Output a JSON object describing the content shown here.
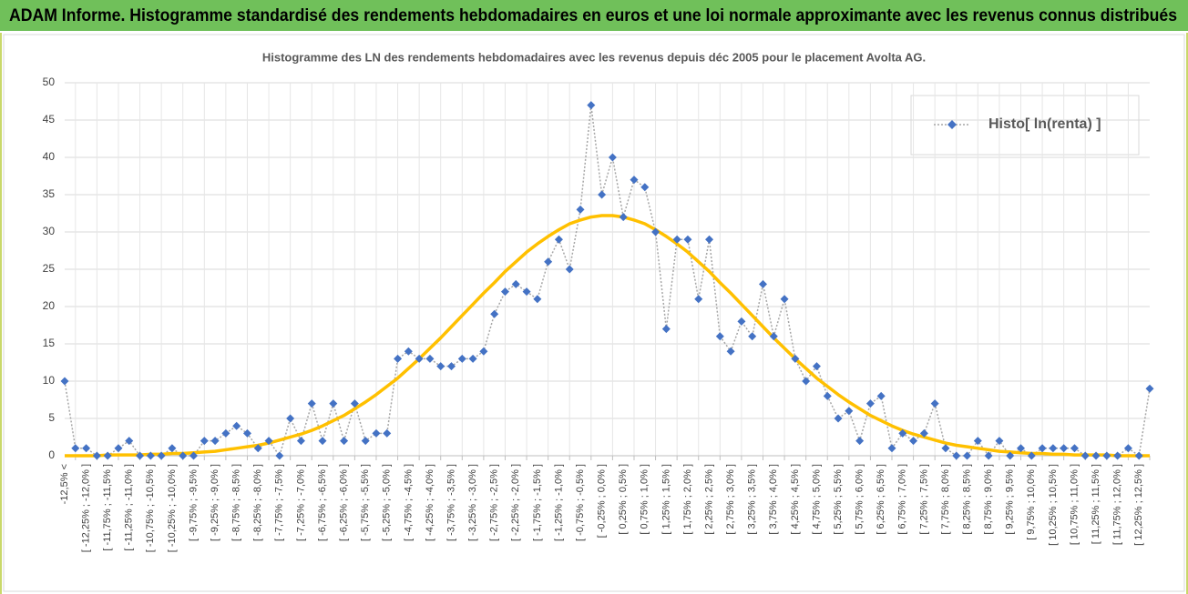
{
  "header": {
    "title": "ADAM Informe. Histogramme standardisé des rendements hebdomadaires en euros et une loi normale approximante avec les revenus connus distribués"
  },
  "chart_data": {
    "type": "line",
    "title": "Histogramme  des LN des rendements hebdomadaires avec les revenus depuis déc 2005 pour le placement Avolta AG.",
    "categories": [
      "-12,5% <",
      null,
      "[ -12,25% ; -12,0% ]",
      null,
      "[ -11,75% ; -11,5% ]",
      null,
      "[ -11,25% ; -11,0% ]",
      null,
      "[ -10,75% ; -10,5% ]",
      null,
      "[ -10,25% ; -10,0% ]",
      null,
      "[ -9,75% ; -9,5% ]",
      null,
      "[ -9,25% ; -9,0% ]",
      null,
      "[ -8,75% ; -8,5% ]",
      null,
      "[ -8,25% ; -8,0% ]",
      null,
      "[ -7,75% ; -7,5% ]",
      null,
      "[ -7,25% ; -7,0% ]",
      null,
      "[ -6,75% ; -6,5% ]",
      null,
      "[ -6,25% ; -6,0% ]",
      null,
      "[ -5,75% ; -5,5% ]",
      null,
      "[ -5,25% ; -5,0% ]",
      null,
      "[ -4,75% ; -4,5% ]",
      null,
      "[ -4,25% ; -4,0% ]",
      null,
      "[ -3,75% ; -3,5% ]",
      null,
      "[ -3,25% ; -3,0% ]",
      null,
      "[ -2,75% ; -2,5% ]",
      null,
      "[ -2,25% ; -2,0% ]",
      null,
      "[ -1,75% ; -1,5% ]",
      null,
      "[ -1,25% ; -1,0% ]",
      null,
      "[ -0,75% ; -0,5% ]",
      null,
      "[ -0,25% ; 0,0% ]",
      null,
      "[ 0,25% ; 0,5% ]",
      null,
      "[ 0,75% ; 1,0% ]",
      null,
      "[ 1,25% ; 1,5% ]",
      null,
      "[ 1,75% ; 2,0% ]",
      null,
      "[ 2,25% ; 2,5% ]",
      null,
      "[ 2,75% ; 3,0% ]",
      null,
      "[ 3,25% ; 3,5% ]",
      null,
      "[ 3,75% ; 4,0% ]",
      null,
      "[ 4,25% ; 4,5% ]",
      null,
      "[ 4,75% ; 5,0% ]",
      null,
      "[ 5,25% ; 5,5% ]",
      null,
      "[ 5,75% ; 6,0% ]",
      null,
      "[ 6,25% ; 6,5% ]",
      null,
      "[ 6,75% ; 7,0% ]",
      null,
      "[ 7,25% ; 7,5% ]",
      null,
      "[ 7,75% ; 8,0% ]",
      null,
      "[ 8,25% ; 8,5% ]",
      null,
      "[ 8,75% ; 9,0% ]",
      null,
      "[ 9,25% ; 9,5% ]",
      null,
      "[ 9,75% ; 10,0% ]",
      null,
      "[ 10,25% ; 10,5% ]",
      null,
      "[ 10,75% ; 11,0% ]",
      null,
      "[ 11,25% ; 11,5% ]",
      null,
      "[ 11,75% ; 12,0% ]",
      null,
      "[ 12,25% ; 12,5% ]",
      null
    ],
    "series": [
      {
        "name": "Histo[ ln(renta) ]",
        "color": "#4472c4",
        "line_color": "#a6a6a6",
        "values": [
          10,
          1,
          1,
          0,
          0,
          1,
          2,
          0,
          0,
          0,
          1,
          0,
          0,
          2,
          2,
          3,
          4,
          3,
          1,
          2,
          0,
          5,
          2,
          7,
          2,
          7,
          2,
          7,
          2,
          3,
          3,
          13,
          14,
          13,
          13,
          12,
          12,
          13,
          13,
          14,
          19,
          22,
          23,
          22,
          21,
          26,
          29,
          25,
          33,
          47,
          35,
          40,
          32,
          37,
          36,
          30,
          17,
          29,
          29,
          21,
          29,
          16,
          14,
          18,
          16,
          23,
          16,
          21,
          13,
          10,
          12,
          8,
          5,
          6,
          2,
          7,
          8,
          1,
          3,
          2,
          3,
          7,
          1,
          0,
          0,
          2,
          0,
          2,
          0,
          1,
          0,
          1,
          1,
          1,
          1,
          0,
          0,
          0,
          0,
          1,
          0,
          9
        ]
      },
      {
        "color": "#ffc000",
        "values": [
          0,
          0,
          0,
          0,
          0.1,
          0.1,
          0.1,
          0.1,
          0.2,
          0.2,
          0.3,
          0.3,
          0.4,
          0.5,
          0.6,
          0.8,
          1.0,
          1.2,
          1.4,
          1.7,
          2.1,
          2.5,
          2.9,
          3.4,
          4.0,
          4.7,
          5.4,
          6.3,
          7.2,
          8.2,
          9.3,
          10.4,
          11.7,
          13.0,
          14.4,
          15.8,
          17.3,
          18.8,
          20.3,
          21.8,
          23.2,
          24.7,
          26.0,
          27.3,
          28.4,
          29.4,
          30.3,
          31.1,
          31.6,
          32.0,
          32.2,
          32.2,
          32.0,
          31.6,
          31.1,
          30.3,
          29.4,
          28.4,
          27.3,
          26.0,
          24.7,
          23.2,
          21.8,
          20.3,
          18.8,
          17.3,
          15.8,
          14.4,
          13.0,
          11.7,
          10.4,
          9.3,
          8.2,
          7.2,
          6.3,
          5.4,
          4.7,
          4.0,
          3.4,
          2.9,
          2.5,
          2.1,
          1.7,
          1.4,
          1.2,
          1.0,
          0.8,
          0.6,
          0.5,
          0.4,
          0.3,
          0.3,
          0.2,
          0.2,
          0.1,
          0.1,
          0.1,
          0.1,
          0,
          0,
          0,
          0
        ]
      }
    ],
    "ylim": [
      0,
      50
    ],
    "yticks": [
      0,
      5,
      10,
      15,
      20,
      25,
      30,
      35,
      40,
      45,
      50
    ],
    "grid": true,
    "legend": "top-right"
  }
}
